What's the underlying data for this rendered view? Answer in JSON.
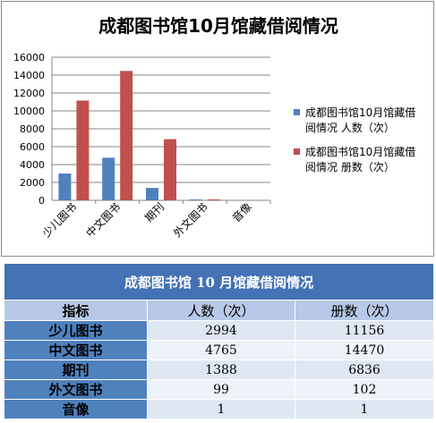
{
  "chart_data": {
    "type": "bar",
    "title": "成都图书馆10月馆藏借阅情况",
    "categories": [
      "少儿图书",
      "中文图书",
      "期刊",
      "外文图书",
      "音像"
    ],
    "series": [
      {
        "name": "成都图书馆10月馆藏借阅情况 人数（次）",
        "values": [
          2994,
          4765,
          1388,
          99,
          1
        ],
        "color": "#4f81bd"
      },
      {
        "name": "成都图书馆10月馆藏借阅情况 册数（次）",
        "values": [
          11156,
          14470,
          6836,
          102,
          1
        ],
        "color": "#c0504d"
      }
    ],
    "yticks": [
      0,
      2000,
      4000,
      6000,
      8000,
      10000,
      12000,
      14000,
      16000
    ],
    "ylim": [
      0,
      16000
    ],
    "grid": true,
    "legend": "right"
  },
  "table": {
    "title": "成都图书馆 10 月馆藏借阅情况",
    "headers": [
      "指标",
      "人数（次）",
      "册数（次）"
    ],
    "rows": [
      {
        "label": "少儿图书",
        "people": "2994",
        "volumes": "11156"
      },
      {
        "label": "中文图书",
        "people": "4765",
        "volumes": "14470"
      },
      {
        "label": "期刊",
        "people": "1388",
        "volumes": "6836"
      },
      {
        "label": "外文图书",
        "people": "99",
        "volumes": "102"
      },
      {
        "label": "音像",
        "people": "1",
        "volumes": "1"
      }
    ]
  }
}
